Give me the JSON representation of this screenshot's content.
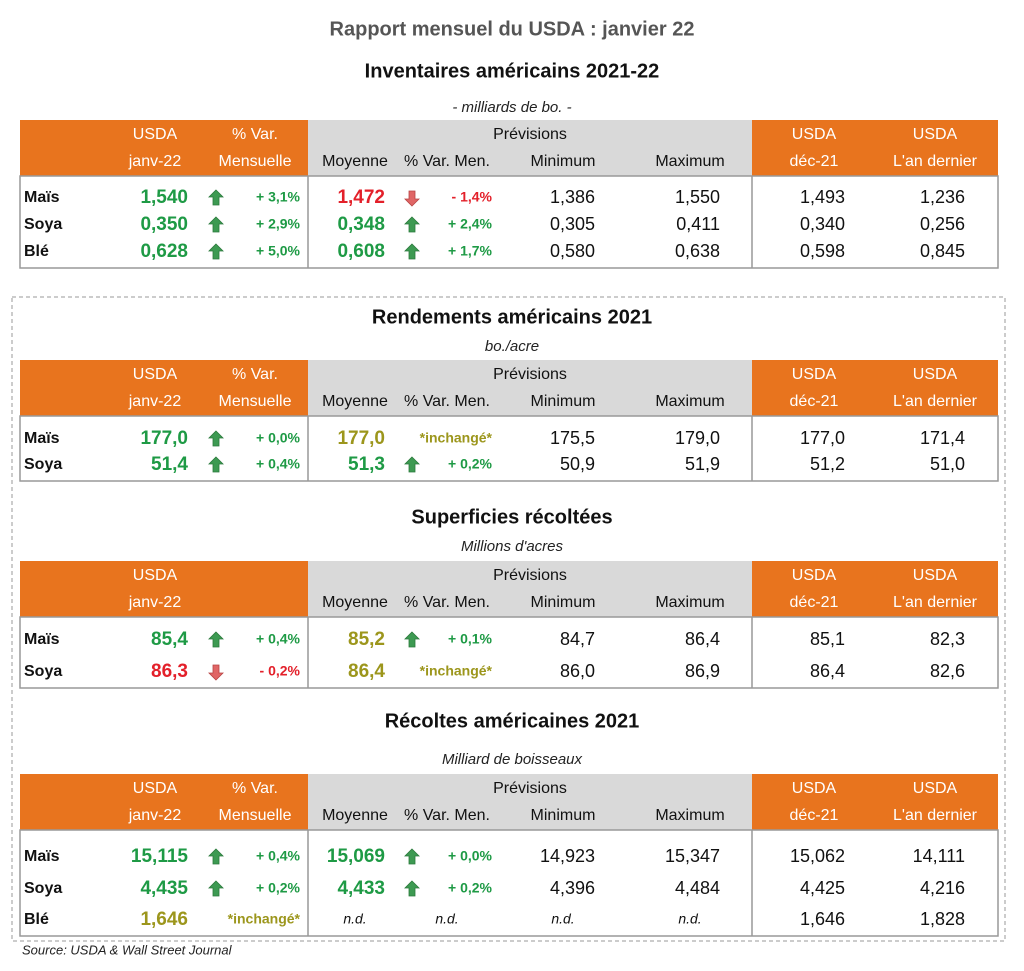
{
  "header": {
    "title": "Rapport mensuel du USDA : janvier 22"
  },
  "sections": [
    {
      "title": "Inventaires américains 2021-22",
      "unit": "- milliards de bo.  -",
      "head1": [
        "USDA",
        "% Var.",
        "Prévisions",
        "USDA",
        "USDA"
      ],
      "head2": [
        "janv-22",
        "Mensuelle",
        "Moyenne",
        "% Var. Men.",
        "Minimum",
        "Maximum",
        "déc-21",
        "L'an dernier"
      ],
      "rows": [
        {
          "label": "Maïs",
          "cells": [
            {
              "text": "1,540",
              "color": "green"
            },
            {
              "text": "+ 3,1%",
              "arrow": "up",
              "color": "green"
            },
            {
              "text": "1,472",
              "color": "red"
            },
            {
              "text": "- 1,4%",
              "arrow": "down",
              "color": "red"
            },
            {
              "text": "1,386"
            },
            {
              "text": "1,550"
            },
            {
              "text": "1,493"
            },
            {
              "text": "1,236"
            }
          ]
        },
        {
          "label": "Soya",
          "cells": [
            {
              "text": "0,350",
              "color": "green"
            },
            {
              "text": "+ 2,9%",
              "arrow": "up",
              "color": "green"
            },
            {
              "text": "0,348",
              "color": "green"
            },
            {
              "text": "+ 2,4%",
              "arrow": "up",
              "color": "green"
            },
            {
              "text": "0,305"
            },
            {
              "text": "0,411"
            },
            {
              "text": "0,340"
            },
            {
              "text": "0,256"
            }
          ]
        },
        {
          "label": "Blé",
          "cells": [
            {
              "text": "0,628",
              "color": "green"
            },
            {
              "text": "+ 5,0%",
              "arrow": "up",
              "color": "green"
            },
            {
              "text": "0,608",
              "color": "green"
            },
            {
              "text": "+ 1,7%",
              "arrow": "up",
              "color": "green"
            },
            {
              "text": "0,580"
            },
            {
              "text": "0,638"
            },
            {
              "text": "0,598"
            },
            {
              "text": "0,845"
            }
          ]
        }
      ]
    },
    {
      "title": "Rendements américains 2021",
      "unit": "bo./acre",
      "head1": [
        "USDA",
        "% Var.",
        "Prévisions",
        "USDA",
        "USDA"
      ],
      "head2": [
        "janv-22",
        "Mensuelle",
        "Moyenne",
        "% Var. Men.",
        "Minimum",
        "Maximum",
        "déc-21",
        "L'an dernier"
      ],
      "rows": [
        {
          "label": "Maïs",
          "cells": [
            {
              "text": "177,0",
              "color": "green"
            },
            {
              "text": "+ 0,0%",
              "arrow": "up",
              "color": "green"
            },
            {
              "text": "177,0",
              "color": "olive"
            },
            {
              "text": "*inchangé*",
              "color": "olive"
            },
            {
              "text": "175,5"
            },
            {
              "text": "179,0"
            },
            {
              "text": "177,0"
            },
            {
              "text": "171,4"
            }
          ]
        },
        {
          "label": "Soya",
          "cells": [
            {
              "text": "51,4",
              "color": "green"
            },
            {
              "text": "+ 0,4%",
              "arrow": "up",
              "color": "green"
            },
            {
              "text": "51,3",
              "color": "green"
            },
            {
              "text": "+ 0,2%",
              "arrow": "up",
              "color": "green"
            },
            {
              "text": "50,9"
            },
            {
              "text": "51,9"
            },
            {
              "text": "51,2"
            },
            {
              "text": "51,0"
            }
          ]
        }
      ]
    },
    {
      "title": "Superficies récoltées",
      "unit": "Millions d'acres",
      "head1": [
        "USDA",
        null,
        "Prévisions",
        "USDA",
        "USDA"
      ],
      "head2": [
        "janv-22",
        null,
        "Moyenne",
        "% Var. Men.",
        "Minimum",
        "Maximum",
        "déc-21",
        "L'an dernier"
      ],
      "rows": [
        {
          "label": "Maïs",
          "cells": [
            {
              "text": "85,4",
              "color": "green"
            },
            {
              "text": "+ 0,4%",
              "arrow": "up",
              "color": "green"
            },
            {
              "text": "85,2",
              "color": "olive"
            },
            {
              "text": "+ 0,1%",
              "arrow": "up",
              "color": "green"
            },
            {
              "text": "84,7"
            },
            {
              "text": "86,4"
            },
            {
              "text": "85,1"
            },
            {
              "text": "82,3"
            }
          ]
        },
        {
          "label": "Soya",
          "cells": [
            {
              "text": "86,3",
              "color": "red"
            },
            {
              "text": "- 0,2%",
              "arrow": "down",
              "color": "red"
            },
            {
              "text": "86,4",
              "color": "olive"
            },
            {
              "text": "*inchangé*",
              "color": "olive"
            },
            {
              "text": "86,0"
            },
            {
              "text": "86,9"
            },
            {
              "text": "86,4"
            },
            {
              "text": "82,6"
            }
          ]
        }
      ]
    },
    {
      "title": "Récoltes américaines 2021",
      "unit": "Milliard de boisseaux",
      "head1": [
        "USDA",
        "% Var.",
        "Prévisions",
        "USDA",
        "USDA"
      ],
      "head2": [
        "janv-22",
        "Mensuelle",
        "Moyenne",
        "% Var. Men.",
        "Minimum",
        "Maximum",
        "déc-21",
        "L'an dernier"
      ],
      "rows": [
        {
          "label": "Maïs",
          "cells": [
            {
              "text": "15,115",
              "color": "green"
            },
            {
              "text": "+ 0,4%",
              "arrow": "up",
              "color": "green"
            },
            {
              "text": "15,069",
              "color": "green"
            },
            {
              "text": "+ 0,0%",
              "arrow": "up",
              "color": "green"
            },
            {
              "text": "14,923"
            },
            {
              "text": "15,347"
            },
            {
              "text": "15,062"
            },
            {
              "text": "14,111"
            }
          ]
        },
        {
          "label": "Soya",
          "cells": [
            {
              "text": "4,435",
              "color": "green"
            },
            {
              "text": "+ 0,2%",
              "arrow": "up",
              "color": "green"
            },
            {
              "text": "4,433",
              "color": "green"
            },
            {
              "text": "+ 0,2%",
              "arrow": "up",
              "color": "green"
            },
            {
              "text": "4,396"
            },
            {
              "text": "4,484"
            },
            {
              "text": "4,425"
            },
            {
              "text": "4,216"
            }
          ]
        },
        {
          "label": "Blé",
          "cells": [
            {
              "text": "1,646",
              "color": "olive"
            },
            {
              "text": "*inchangé*",
              "color": "olive"
            },
            {
              "text": "n.d.",
              "style": "italic"
            },
            {
              "text": "n.d.",
              "style": "italic"
            },
            {
              "text": "n.d.",
              "style": "italic"
            },
            {
              "text": "n.d.",
              "style": "italic"
            },
            {
              "text": "1,646"
            },
            {
              "text": "1,828"
            }
          ]
        }
      ]
    }
  ],
  "footer": {
    "source": "Source: USDA & Wall Street Journal"
  }
}
